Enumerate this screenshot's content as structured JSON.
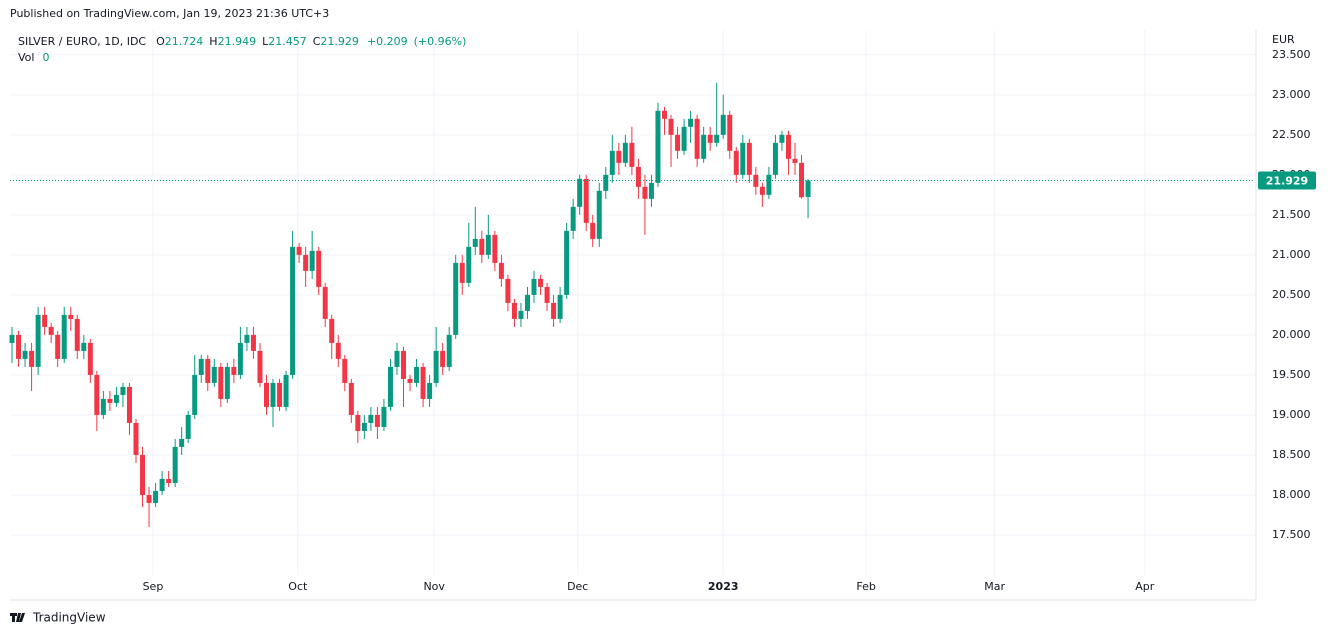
{
  "header": {
    "published": "Published on TradingView.com, Jan 19, 2023 21:36 UTC+3",
    "symbol": "SILVER / EURO, 1D, IDC",
    "legend_keys": [
      "O",
      "H",
      "L",
      "C"
    ],
    "change": "+0.209",
    "change_pct": "(+0.96%)",
    "vol_label": "Vol",
    "vol": 0,
    "currency": "EUR"
  },
  "footer": {
    "logo": "TradingView"
  },
  "chart_data": {
    "type": "candlestick",
    "up_color": "#089981",
    "down_color": "#f23645",
    "ylim": [
      17.0,
      23.81
    ],
    "yticks": [
      {
        "value": 17.5,
        "label": "17.500"
      },
      {
        "value": 18,
        "label": "18.000"
      },
      {
        "value": 18.5,
        "label": "18.500"
      },
      {
        "value": 19,
        "label": "19.000"
      },
      {
        "value": 19.5,
        "label": "19.500"
      },
      {
        "value": 20,
        "label": "20.000"
      },
      {
        "value": 20.5,
        "label": "20.500"
      },
      {
        "value": 21,
        "label": "21.000"
      },
      {
        "value": 21.5,
        "label": "21.500"
      },
      {
        "value": 22,
        "label": "22.000"
      },
      {
        "value": 22.5,
        "label": "22.500"
      },
      {
        "value": 23,
        "label": "23.000"
      },
      {
        "value": 23.5,
        "label": "23.500"
      }
    ],
    "xlim": [
      -0.31,
      190.5
    ],
    "xticks": [
      {
        "value": 21.6,
        "label": "Sep"
      },
      {
        "value": 43.8,
        "label": "Oct"
      },
      {
        "value": 64.7,
        "label": "Nov"
      },
      {
        "value": 86.7,
        "label": "Dec"
      },
      {
        "value": 109,
        "label": "2023"
      },
      {
        "value": 130.9,
        "label": "Feb"
      },
      {
        "value": 150.6,
        "label": "Mar"
      },
      {
        "value": 173.6,
        "label": "Apr"
      }
    ],
    "grid": true,
    "ohlc": [
      [
        19.9,
        20.1,
        19.65,
        20.0
      ],
      [
        20.0,
        20.05,
        19.6,
        19.7
      ],
      [
        19.7,
        19.9,
        19.6,
        19.8
      ],
      [
        19.8,
        19.9,
        19.3,
        19.6
      ],
      [
        19.6,
        20.35,
        19.5,
        20.25
      ],
      [
        20.25,
        20.35,
        20.0,
        20.1
      ],
      [
        20.1,
        20.15,
        19.9,
        20.0
      ],
      [
        20.0,
        20.05,
        19.6,
        19.7
      ],
      [
        19.7,
        20.35,
        19.65,
        20.25
      ],
      [
        20.25,
        20.35,
        20.05,
        20.2
      ],
      [
        20.2,
        20.25,
        19.7,
        19.8
      ],
      [
        19.8,
        20.0,
        19.7,
        19.9
      ],
      [
        19.9,
        19.95,
        19.4,
        19.5
      ],
      [
        19.5,
        19.55,
        18.8,
        19.0
      ],
      [
        19.0,
        19.3,
        18.95,
        19.2
      ],
      [
        19.2,
        19.3,
        19.05,
        19.15
      ],
      [
        19.15,
        19.35,
        19.1,
        19.25
      ],
      [
        19.25,
        19.4,
        19.1,
        19.35
      ],
      [
        19.35,
        19.4,
        18.75,
        18.9
      ],
      [
        18.9,
        18.95,
        18.4,
        18.5
      ],
      [
        18.5,
        18.6,
        17.85,
        18.0
      ],
      [
        18.0,
        18.1,
        17.6,
        17.9
      ],
      [
        17.9,
        18.15,
        17.85,
        18.05
      ],
      [
        18.05,
        18.3,
        18.0,
        18.2
      ],
      [
        18.2,
        18.3,
        18.1,
        18.15
      ],
      [
        18.15,
        18.7,
        18.1,
        18.6
      ],
      [
        18.6,
        18.85,
        18.5,
        18.7
      ],
      [
        18.7,
        19.05,
        18.65,
        19.0
      ],
      [
        19.0,
        19.75,
        18.95,
        19.5
      ],
      [
        19.5,
        19.75,
        19.4,
        19.7
      ],
      [
        19.7,
        19.75,
        19.3,
        19.4
      ],
      [
        19.4,
        19.7,
        19.35,
        19.6
      ],
      [
        19.6,
        19.65,
        19.1,
        19.2
      ],
      [
        19.2,
        19.65,
        19.15,
        19.6
      ],
      [
        19.6,
        19.7,
        19.4,
        19.5
      ],
      [
        19.5,
        20.1,
        19.45,
        19.9
      ],
      [
        19.9,
        20.1,
        19.8,
        20.0
      ],
      [
        20.0,
        20.1,
        19.7,
        19.8
      ],
      [
        19.8,
        19.9,
        19.35,
        19.4
      ],
      [
        19.4,
        19.5,
        19.0,
        19.1
      ],
      [
        19.1,
        19.45,
        18.85,
        19.4
      ],
      [
        19.4,
        19.45,
        19.05,
        19.1
      ],
      [
        19.1,
        19.55,
        19.05,
        19.5
      ],
      [
        19.5,
        21.3,
        19.45,
        21.1
      ],
      [
        21.1,
        21.15,
        20.9,
        21.0
      ],
      [
        21.0,
        21.1,
        20.6,
        20.8
      ],
      [
        20.8,
        21.3,
        20.7,
        21.05
      ],
      [
        21.05,
        21.1,
        20.5,
        20.6
      ],
      [
        20.6,
        20.65,
        20.1,
        20.2
      ],
      [
        20.2,
        20.25,
        19.7,
        19.9
      ],
      [
        19.9,
        20.0,
        19.6,
        19.7
      ],
      [
        19.7,
        19.75,
        19.3,
        19.4
      ],
      [
        19.4,
        19.45,
        18.9,
        19.0
      ],
      [
        19.0,
        19.05,
        18.65,
        18.8
      ],
      [
        18.8,
        19.0,
        18.7,
        18.9
      ],
      [
        18.9,
        19.1,
        18.8,
        19.0
      ],
      [
        19.0,
        19.1,
        18.7,
        18.85
      ],
      [
        18.85,
        19.2,
        18.8,
        19.1
      ],
      [
        19.1,
        19.7,
        19.05,
        19.6
      ],
      [
        19.6,
        19.9,
        19.5,
        19.8
      ],
      [
        19.8,
        19.85,
        19.1,
        19.45
      ],
      [
        19.45,
        19.5,
        19.3,
        19.4
      ],
      [
        19.4,
        19.7,
        19.35,
        19.6
      ],
      [
        19.6,
        19.65,
        19.1,
        19.2
      ],
      [
        19.2,
        19.5,
        19.1,
        19.4
      ],
      [
        19.4,
        20.1,
        19.35,
        19.8
      ],
      [
        19.8,
        19.9,
        19.5,
        19.6
      ],
      [
        19.6,
        20.1,
        19.55,
        20.0
      ],
      [
        20.0,
        21.0,
        19.95,
        20.9
      ],
      [
        20.9,
        21.0,
        20.5,
        20.65
      ],
      [
        20.65,
        21.4,
        20.6,
        21.1
      ],
      [
        21.1,
        21.6,
        21.0,
        21.2
      ],
      [
        21.2,
        21.3,
        20.9,
        21.0
      ],
      [
        21.0,
        21.5,
        20.95,
        21.25
      ],
      [
        21.25,
        21.3,
        20.8,
        20.9
      ],
      [
        20.9,
        21.0,
        20.6,
        20.7
      ],
      [
        20.7,
        20.75,
        20.3,
        20.4
      ],
      [
        20.4,
        20.45,
        20.1,
        20.2
      ],
      [
        20.2,
        20.4,
        20.1,
        20.3
      ],
      [
        20.3,
        20.6,
        20.2,
        20.5
      ],
      [
        20.5,
        20.8,
        20.4,
        20.7
      ],
      [
        20.7,
        20.75,
        20.5,
        20.6
      ],
      [
        20.6,
        20.65,
        20.3,
        20.4
      ],
      [
        20.4,
        20.5,
        20.1,
        20.2
      ],
      [
        20.2,
        20.6,
        20.15,
        20.5
      ],
      [
        20.5,
        21.4,
        20.45,
        21.3
      ],
      [
        21.3,
        21.7,
        21.2,
        21.6
      ],
      [
        21.6,
        22.0,
        21.5,
        21.95
      ],
      [
        21.95,
        22.0,
        21.3,
        21.4
      ],
      [
        21.4,
        21.5,
        21.1,
        21.2
      ],
      [
        21.2,
        21.9,
        21.1,
        21.8
      ],
      [
        21.8,
        22.1,
        21.7,
        22.0
      ],
      [
        22.0,
        22.5,
        21.9,
        22.3
      ],
      [
        22.3,
        22.4,
        22.0,
        22.15
      ],
      [
        22.15,
        22.5,
        22.1,
        22.4
      ],
      [
        22.4,
        22.6,
        22.0,
        22.1
      ],
      [
        22.1,
        22.2,
        21.7,
        21.85
      ],
      [
        21.85,
        22.0,
        21.25,
        21.7
      ],
      [
        21.7,
        22.0,
        21.6,
        21.9
      ],
      [
        21.9,
        22.9,
        21.85,
        22.8
      ],
      [
        22.8,
        22.85,
        22.5,
        22.7
      ],
      [
        22.7,
        22.75,
        22.1,
        22.5
      ],
      [
        22.5,
        22.6,
        22.2,
        22.3
      ],
      [
        22.3,
        22.7,
        22.25,
        22.6
      ],
      [
        22.6,
        22.8,
        22.4,
        22.7
      ],
      [
        22.7,
        22.75,
        22.1,
        22.2
      ],
      [
        22.2,
        22.6,
        22.15,
        22.5
      ],
      [
        22.5,
        22.6,
        22.3,
        22.4
      ],
      [
        22.4,
        23.15,
        22.35,
        22.5
      ],
      [
        22.5,
        23.0,
        22.45,
        22.75
      ],
      [
        22.75,
        22.8,
        22.2,
        22.3
      ],
      [
        22.3,
        22.35,
        21.9,
        22.0
      ],
      [
        22.0,
        22.5,
        21.95,
        22.4
      ],
      [
        22.4,
        22.45,
        21.9,
        22.0
      ],
      [
        22.0,
        22.1,
        21.75,
        21.85
      ],
      [
        21.85,
        21.9,
        21.6,
        21.75
      ],
      [
        21.75,
        22.1,
        21.7,
        22.0
      ],
      [
        22.0,
        22.5,
        21.95,
        22.4
      ],
      [
        22.4,
        22.55,
        22.3,
        22.5
      ],
      [
        22.5,
        22.55,
        22.0,
        22.2
      ],
      [
        22.2,
        22.4,
        22.0,
        22.15
      ],
      [
        22.15,
        22.25,
        21.7,
        21.72
      ],
      [
        21.724,
        21.949,
        21.457,
        21.929
      ]
    ]
  }
}
